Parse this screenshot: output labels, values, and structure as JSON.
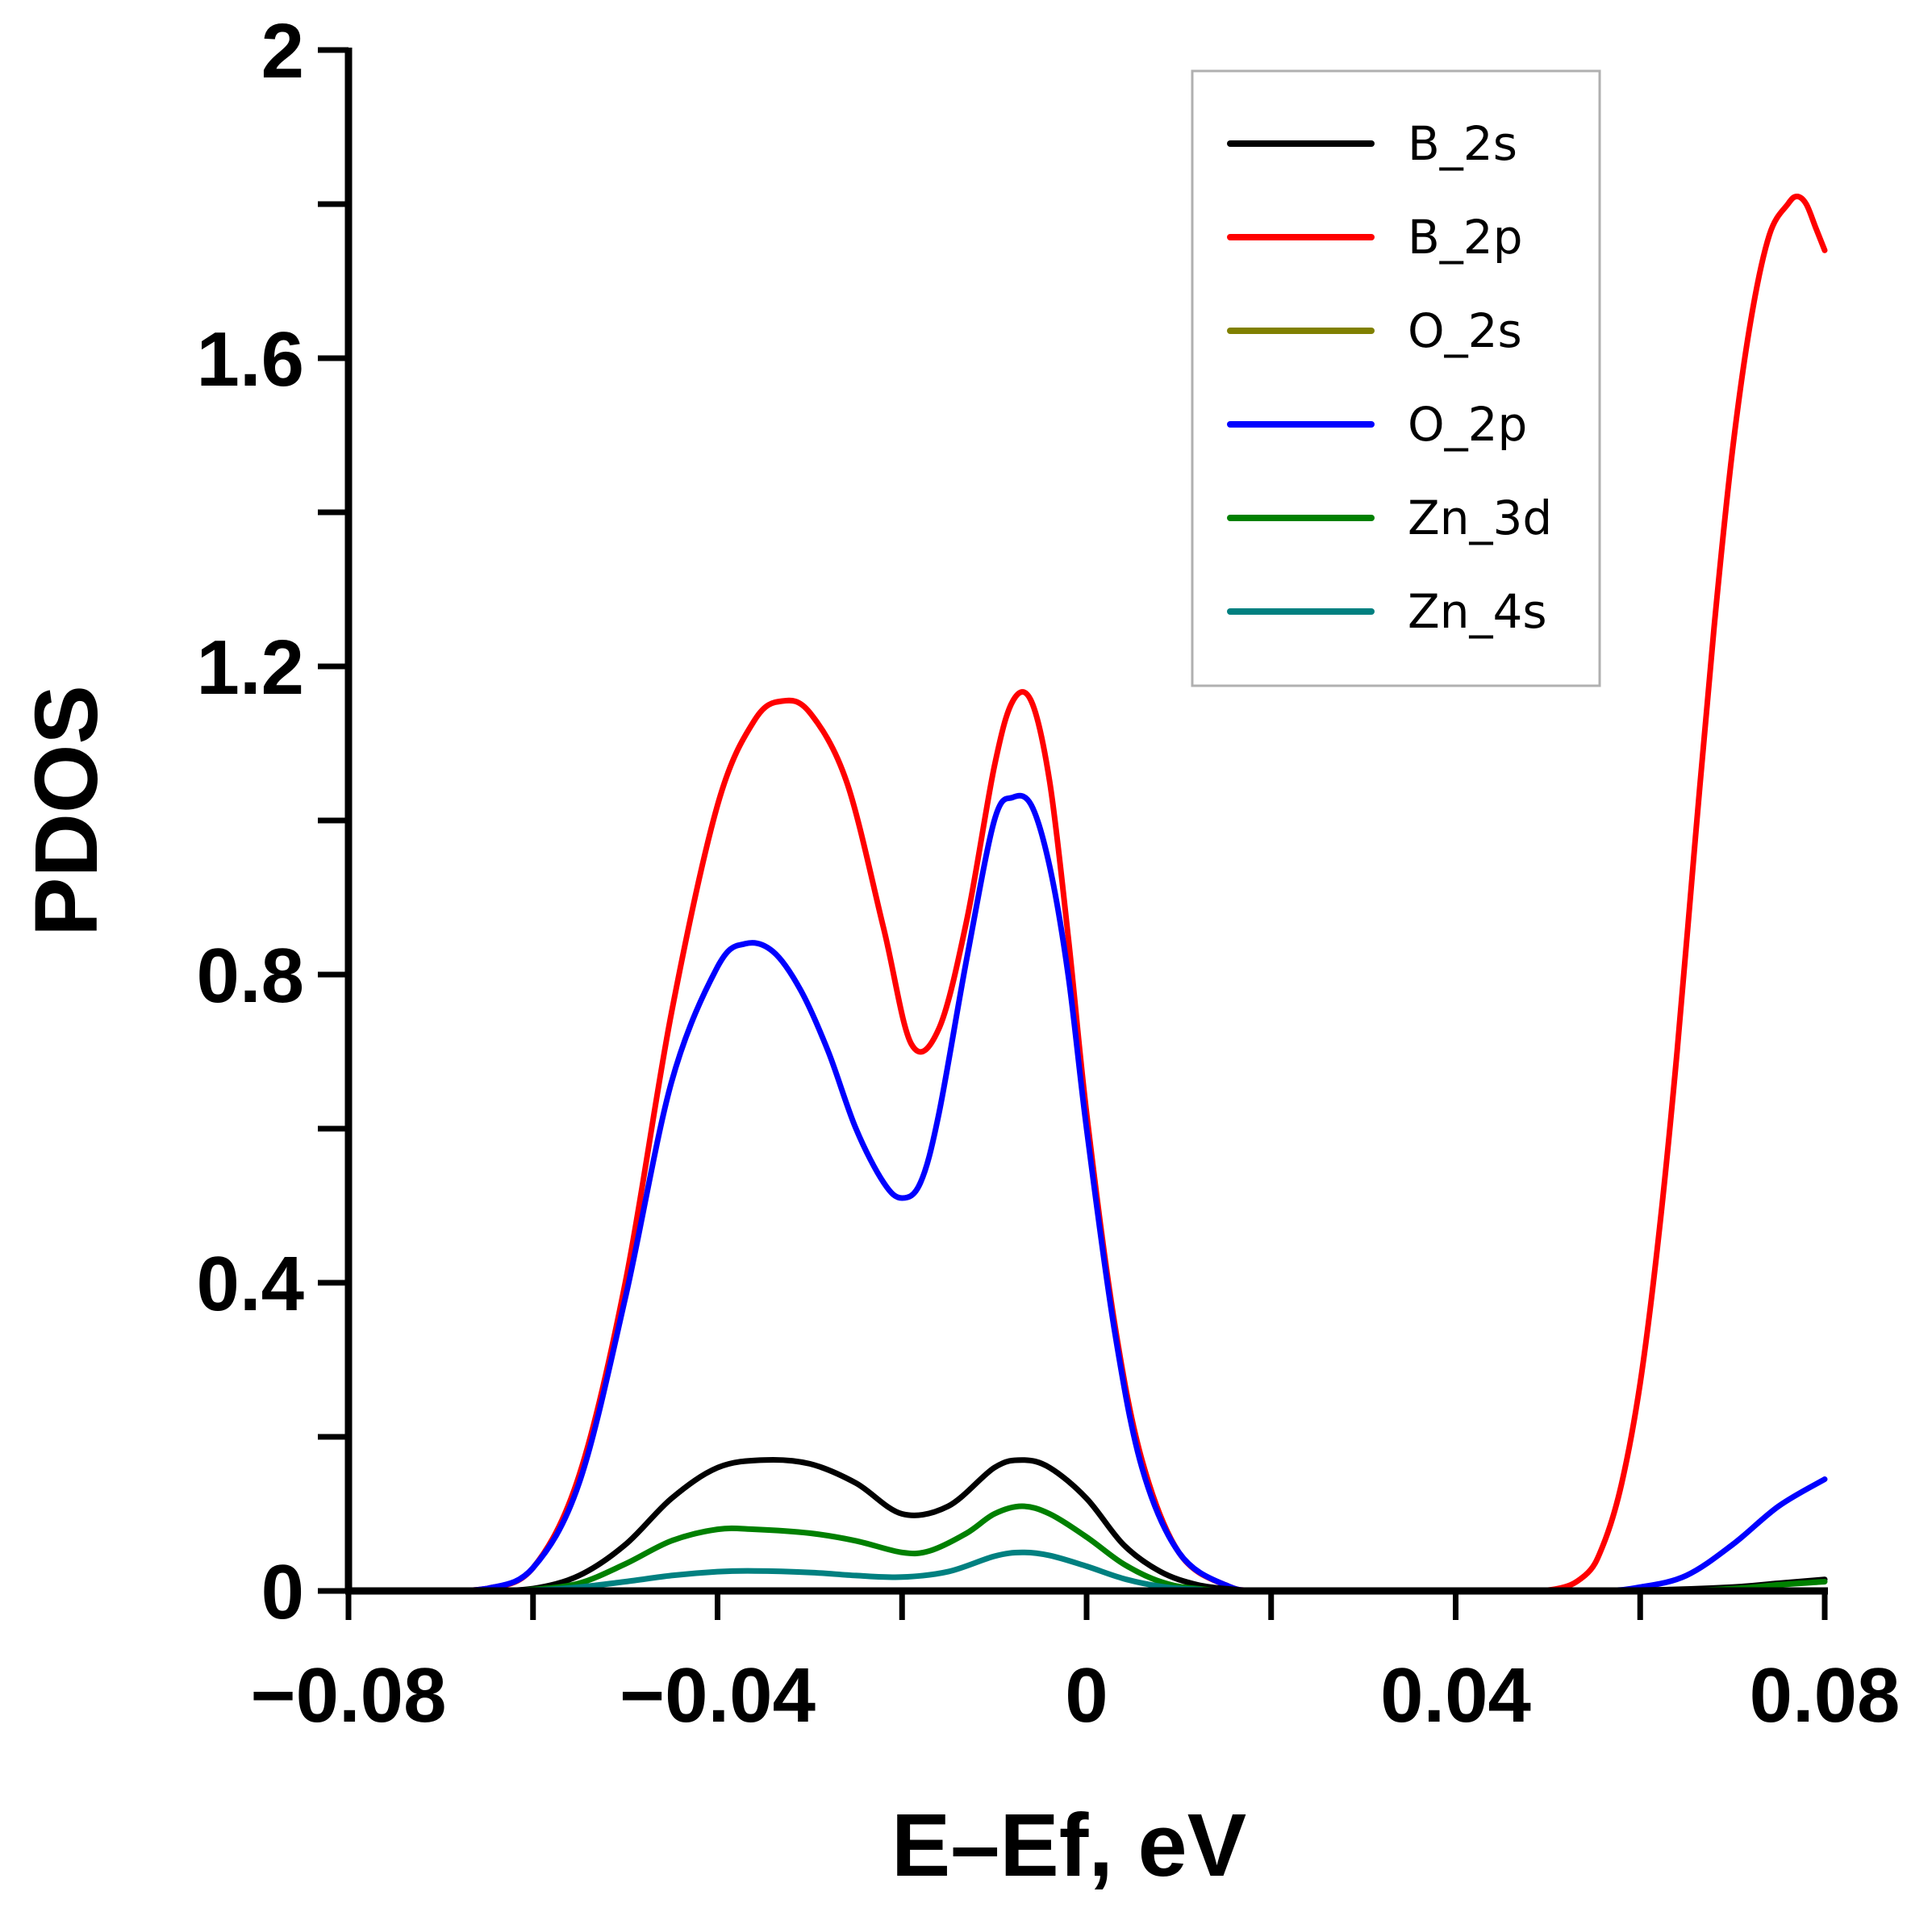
{
  "chart_data": {
    "type": "line",
    "title": "",
    "xlabel": "E–Ef, eV",
    "ylabel": "PDOS",
    "xlim": [
      -0.08,
      0.08
    ],
    "ylim": [
      0,
      2
    ],
    "x_ticks": [
      -0.08,
      -0.06,
      -0.04,
      -0.02,
      0,
      0.02,
      0.04,
      0.06,
      0.08
    ],
    "x_tick_labels": [
      "−0.08",
      "",
      "−0.04",
      "",
      "0",
      "",
      "0.04",
      "",
      "0.08"
    ],
    "y_ticks": [
      0,
      0.2,
      0.4,
      0.6,
      0.8,
      1.0,
      1.2,
      1.4,
      1.6,
      1.8,
      2.0
    ],
    "y_tick_labels": [
      "0",
      "",
      "0.4",
      "",
      "0.8",
      "",
      "1.2",
      "",
      "1.6",
      "",
      "2"
    ],
    "grid": false,
    "legend_position": "top-right",
    "series": [
      {
        "name": "B_2s",
        "color": "#000000",
        "x": [
          -0.08,
          -0.07,
          -0.065,
          -0.06,
          -0.055,
          -0.05,
          -0.045,
          -0.04,
          -0.035,
          -0.03,
          -0.025,
          -0.02,
          -0.015,
          -0.01,
          -0.007,
          -0.004,
          0.0,
          0.004,
          0.008,
          0.012,
          0.016,
          0.02,
          0.04,
          0.06,
          0.07,
          0.075,
          0.08
        ],
        "y": [
          0,
          0,
          0,
          0.003,
          0.02,
          0.06,
          0.12,
          0.16,
          0.17,
          0.165,
          0.14,
          0.1,
          0.11,
          0.16,
          0.17,
          0.16,
          0.12,
          0.06,
          0.025,
          0.008,
          0.002,
          0,
          0,
          0.001,
          0.005,
          0.01,
          0.015
        ]
      },
      {
        "name": "B_2p",
        "color": "#ff0000",
        "x": [
          -0.08,
          -0.07,
          -0.065,
          -0.06,
          -0.055,
          -0.05,
          -0.045,
          -0.04,
          -0.036,
          -0.033,
          -0.03,
          -0.026,
          -0.022,
          -0.019,
          -0.016,
          -0.013,
          -0.01,
          -0.008,
          -0.006,
          -0.004,
          -0.002,
          0.0,
          0.003,
          0.006,
          0.01,
          0.015,
          0.02,
          0.04,
          0.05,
          0.054,
          0.056,
          0.058,
          0.06,
          0.062,
          0.064,
          0.066,
          0.068,
          0.07,
          0.072,
          0.074,
          0.076,
          0.077,
          0.078,
          0.079,
          0.08
        ],
        "y": [
          0,
          0,
          0.003,
          0.03,
          0.15,
          0.4,
          0.75,
          1.02,
          1.13,
          1.155,
          1.14,
          1.05,
          0.86,
          0.71,
          0.73,
          0.87,
          1.07,
          1.155,
          1.155,
          1.05,
          0.85,
          0.62,
          0.35,
          0.17,
          0.05,
          0.008,
          0,
          0,
          0.001,
          0.02,
          0.06,
          0.14,
          0.27,
          0.46,
          0.7,
          0.98,
          1.25,
          1.48,
          1.65,
          1.76,
          1.8,
          1.81,
          1.8,
          1.77,
          1.74
        ]
      },
      {
        "name": "O_2s",
        "color": "#808000",
        "x": [
          -0.08,
          0.08
        ],
        "y": [
          0,
          0
        ]
      },
      {
        "name": "O_2p",
        "color": "#0000ff",
        "x": [
          -0.08,
          -0.07,
          -0.065,
          -0.06,
          -0.055,
          -0.05,
          -0.045,
          -0.04,
          -0.037,
          -0.034,
          -0.031,
          -0.028,
          -0.025,
          -0.022,
          -0.02,
          -0.018,
          -0.016,
          -0.013,
          -0.01,
          -0.008,
          -0.006,
          -0.004,
          -0.002,
          0.0,
          0.003,
          0.006,
          0.01,
          0.015,
          0.02,
          0.04,
          0.055,
          0.06,
          0.065,
          0.07,
          0.075,
          0.08
        ],
        "y": [
          0,
          0,
          0.003,
          0.03,
          0.14,
          0.38,
          0.66,
          0.81,
          0.84,
          0.83,
          0.78,
          0.7,
          0.6,
          0.53,
          0.51,
          0.53,
          0.62,
          0.82,
          1.0,
          1.03,
          1.02,
          0.94,
          0.8,
          0.6,
          0.34,
          0.16,
          0.05,
          0.008,
          0,
          0,
          0,
          0.005,
          0.02,
          0.06,
          0.11,
          0.145
        ]
      },
      {
        "name": "Zn_3d",
        "color": "#008000",
        "x": [
          -0.08,
          -0.065,
          -0.06,
          -0.055,
          -0.05,
          -0.045,
          -0.04,
          -0.036,
          -0.03,
          -0.025,
          -0.02,
          -0.017,
          -0.013,
          -0.01,
          -0.007,
          -0.004,
          0.0,
          0.004,
          0.008,
          0.012,
          0.02,
          0.06,
          0.07,
          0.075,
          0.08
        ],
        "y": [
          0,
          0,
          0.002,
          0.01,
          0.035,
          0.065,
          0.08,
          0.08,
          0.075,
          0.065,
          0.05,
          0.052,
          0.075,
          0.1,
          0.11,
          0.1,
          0.07,
          0.035,
          0.012,
          0.003,
          0,
          0,
          0.003,
          0.008,
          0.012
        ]
      },
      {
        "name": "Zn_4s",
        "color": "#008080",
        "x": [
          -0.08,
          -0.065,
          -0.06,
          -0.055,
          -0.05,
          -0.045,
          -0.04,
          -0.036,
          -0.03,
          -0.025,
          -0.02,
          -0.015,
          -0.01,
          -0.007,
          -0.004,
          0.0,
          0.004,
          0.008,
          0.012,
          0.02,
          0.08
        ],
        "y": [
          0,
          0,
          0.001,
          0.005,
          0.012,
          0.02,
          0.025,
          0.026,
          0.024,
          0.02,
          0.018,
          0.025,
          0.045,
          0.05,
          0.046,
          0.032,
          0.016,
          0.006,
          0.002,
          0,
          0
        ]
      }
    ]
  }
}
